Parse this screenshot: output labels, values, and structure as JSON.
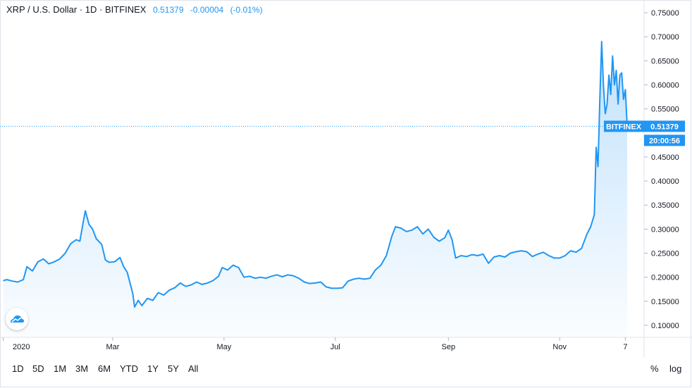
{
  "header": {
    "symbol": "XRP / U.S. Dollar",
    "interval": "1D",
    "exchange": "BITFINEX",
    "price": "0.51379",
    "change": "-0.00004",
    "change_pct": "(-0.01%)"
  },
  "price_tag": {
    "exchange": "BITFINEX",
    "price": "0.51379",
    "countdown": "20:00:56"
  },
  "range_buttons": [
    "1D",
    "5D",
    "1M",
    "3M",
    "6M",
    "YTD",
    "1Y",
    "5Y",
    "All"
  ],
  "scale_buttons": {
    "percent": "%",
    "log": "log"
  },
  "logo": "tradingview-cloud-icon",
  "colors": {
    "line": "#2196f3",
    "fill": "#2196f3",
    "text": "#131722",
    "border": "#e0e3eb"
  },
  "chart_data": {
    "type": "area",
    "title": "XRP / U.S. Dollar · 1D · BITFINEX",
    "ylabel": "",
    "xlabel": "",
    "y_tick_labels": [
      "0.10000",
      "0.15000",
      "0.20000",
      "0.25000",
      "0.30000",
      "0.35000",
      "0.40000",
      "0.45000",
      "0.55000",
      "0.60000",
      "0.65000",
      "0.70000",
      "0.75000"
    ],
    "y_ticks": [
      0.1,
      0.15,
      0.2,
      0.25,
      0.3,
      0.35,
      0.4,
      0.45,
      0.55,
      0.6,
      0.65,
      0.7,
      0.75
    ],
    "x_tick_labels": [
      "2020",
      "Mar",
      "May",
      "Jul",
      "Sep",
      "Nov",
      "7"
    ],
    "x_ticks": [
      "2020-01-01",
      "2020-03-01",
      "2020-05-01",
      "2020-07-01",
      "2020-09-01",
      "2020-11-01",
      "2020-12-07"
    ],
    "x_range": [
      "2019-12-31",
      "2020-12-08"
    ],
    "ylim": [
      0.088,
      0.775
    ],
    "last_value": 0.51379,
    "series": [
      {
        "name": "XRPUSD",
        "points": [
          [
            "2020-01-01",
            0.193
          ],
          [
            "2020-01-03",
            0.195
          ],
          [
            "2020-01-06",
            0.192
          ],
          [
            "2020-01-09",
            0.19
          ],
          [
            "2020-01-12",
            0.195
          ],
          [
            "2020-01-14",
            0.222
          ],
          [
            "2020-01-17",
            0.213
          ],
          [
            "2020-01-20",
            0.232
          ],
          [
            "2020-01-23",
            0.238
          ],
          [
            "2020-01-26",
            0.228
          ],
          [
            "2020-01-29",
            0.232
          ],
          [
            "2020-02-01",
            0.238
          ],
          [
            "2020-02-04",
            0.25
          ],
          [
            "2020-02-07",
            0.27
          ],
          [
            "2020-02-10",
            0.278
          ],
          [
            "2020-02-12",
            0.275
          ],
          [
            "2020-02-14",
            0.318
          ],
          [
            "2020-02-15",
            0.338
          ],
          [
            "2020-02-17",
            0.31
          ],
          [
            "2020-02-19",
            0.3
          ],
          [
            "2020-02-21",
            0.28
          ],
          [
            "2020-02-24",
            0.268
          ],
          [
            "2020-02-26",
            0.236
          ],
          [
            "2020-02-28",
            0.231
          ],
          [
            "2020-03-02",
            0.232
          ],
          [
            "2020-03-05",
            0.241
          ],
          [
            "2020-03-07",
            0.222
          ],
          [
            "2020-03-09",
            0.21
          ],
          [
            "2020-03-12",
            0.166
          ],
          [
            "2020-03-13",
            0.138
          ],
          [
            "2020-03-15",
            0.152
          ],
          [
            "2020-03-17",
            0.141
          ],
          [
            "2020-03-20",
            0.156
          ],
          [
            "2020-03-23",
            0.152
          ],
          [
            "2020-03-26",
            0.168
          ],
          [
            "2020-03-29",
            0.163
          ],
          [
            "2020-04-01",
            0.173
          ],
          [
            "2020-04-04",
            0.178
          ],
          [
            "2020-04-07",
            0.188
          ],
          [
            "2020-04-10",
            0.181
          ],
          [
            "2020-04-13",
            0.184
          ],
          [
            "2020-04-16",
            0.19
          ],
          [
            "2020-04-19",
            0.185
          ],
          [
            "2020-04-22",
            0.188
          ],
          [
            "2020-04-25",
            0.193
          ],
          [
            "2020-04-28",
            0.202
          ],
          [
            "2020-04-30",
            0.22
          ],
          [
            "2020-05-03",
            0.215
          ],
          [
            "2020-05-06",
            0.225
          ],
          [
            "2020-05-09",
            0.22
          ],
          [
            "2020-05-12",
            0.2
          ],
          [
            "2020-05-15",
            0.202
          ],
          [
            "2020-05-18",
            0.198
          ],
          [
            "2020-05-21",
            0.2
          ],
          [
            "2020-05-24",
            0.198
          ],
          [
            "2020-05-27",
            0.202
          ],
          [
            "2020-05-30",
            0.205
          ],
          [
            "2020-06-02",
            0.201
          ],
          [
            "2020-06-05",
            0.205
          ],
          [
            "2020-06-08",
            0.203
          ],
          [
            "2020-06-11",
            0.198
          ],
          [
            "2020-06-14",
            0.19
          ],
          [
            "2020-06-17",
            0.187
          ],
          [
            "2020-06-20",
            0.188
          ],
          [
            "2020-06-23",
            0.19
          ],
          [
            "2020-06-26",
            0.18
          ],
          [
            "2020-06-29",
            0.177
          ],
          [
            "2020-07-02",
            0.177
          ],
          [
            "2020-07-05",
            0.178
          ],
          [
            "2020-07-08",
            0.192
          ],
          [
            "2020-07-11",
            0.196
          ],
          [
            "2020-07-14",
            0.198
          ],
          [
            "2020-07-17",
            0.196
          ],
          [
            "2020-07-20",
            0.198
          ],
          [
            "2020-07-23",
            0.215
          ],
          [
            "2020-07-26",
            0.225
          ],
          [
            "2020-07-29",
            0.245
          ],
          [
            "2020-08-01",
            0.285
          ],
          [
            "2020-08-03",
            0.305
          ],
          [
            "2020-08-06",
            0.302
          ],
          [
            "2020-08-09",
            0.295
          ],
          [
            "2020-08-12",
            0.298
          ],
          [
            "2020-08-15",
            0.305
          ],
          [
            "2020-08-18",
            0.29
          ],
          [
            "2020-08-21",
            0.3
          ],
          [
            "2020-08-24",
            0.283
          ],
          [
            "2020-08-27",
            0.275
          ],
          [
            "2020-08-30",
            0.282
          ],
          [
            "2020-09-01",
            0.298
          ],
          [
            "2020-09-03",
            0.278
          ],
          [
            "2020-09-05",
            0.24
          ],
          [
            "2020-09-08",
            0.245
          ],
          [
            "2020-09-11",
            0.243
          ],
          [
            "2020-09-14",
            0.247
          ],
          [
            "2020-09-17",
            0.245
          ],
          [
            "2020-09-20",
            0.248
          ],
          [
            "2020-09-23",
            0.229
          ],
          [
            "2020-09-26",
            0.242
          ],
          [
            "2020-09-29",
            0.245
          ],
          [
            "2020-10-02",
            0.242
          ],
          [
            "2020-10-05",
            0.25
          ],
          [
            "2020-10-08",
            0.253
          ],
          [
            "2020-10-11",
            0.255
          ],
          [
            "2020-10-14",
            0.253
          ],
          [
            "2020-10-17",
            0.243
          ],
          [
            "2020-10-20",
            0.248
          ],
          [
            "2020-10-23",
            0.252
          ],
          [
            "2020-10-26",
            0.245
          ],
          [
            "2020-10-29",
            0.24
          ],
          [
            "2020-11-01",
            0.24
          ],
          [
            "2020-11-04",
            0.245
          ],
          [
            "2020-11-07",
            0.255
          ],
          [
            "2020-11-10",
            0.252
          ],
          [
            "2020-11-13",
            0.26
          ],
          [
            "2020-11-16",
            0.29
          ],
          [
            "2020-11-18",
            0.305
          ],
          [
            "2020-11-20",
            0.33
          ],
          [
            "2020-11-21",
            0.47
          ],
          [
            "2020-11-22",
            0.43
          ],
          [
            "2020-11-23",
            0.57
          ],
          [
            "2020-11-24",
            0.69
          ],
          [
            "2020-11-25",
            0.6
          ],
          [
            "2020-11-26",
            0.54
          ],
          [
            "2020-11-27",
            0.56
          ],
          [
            "2020-11-28",
            0.62
          ],
          [
            "2020-11-29",
            0.58
          ],
          [
            "2020-11-30",
            0.66
          ],
          [
            "2020-12-01",
            0.6
          ],
          [
            "2020-12-02",
            0.63
          ],
          [
            "2020-12-03",
            0.56
          ],
          [
            "2020-12-04",
            0.62
          ],
          [
            "2020-12-05",
            0.625
          ],
          [
            "2020-12-06",
            0.57
          ],
          [
            "2020-12-07",
            0.59
          ],
          [
            "2020-12-08",
            0.514
          ]
        ]
      }
    ]
  }
}
